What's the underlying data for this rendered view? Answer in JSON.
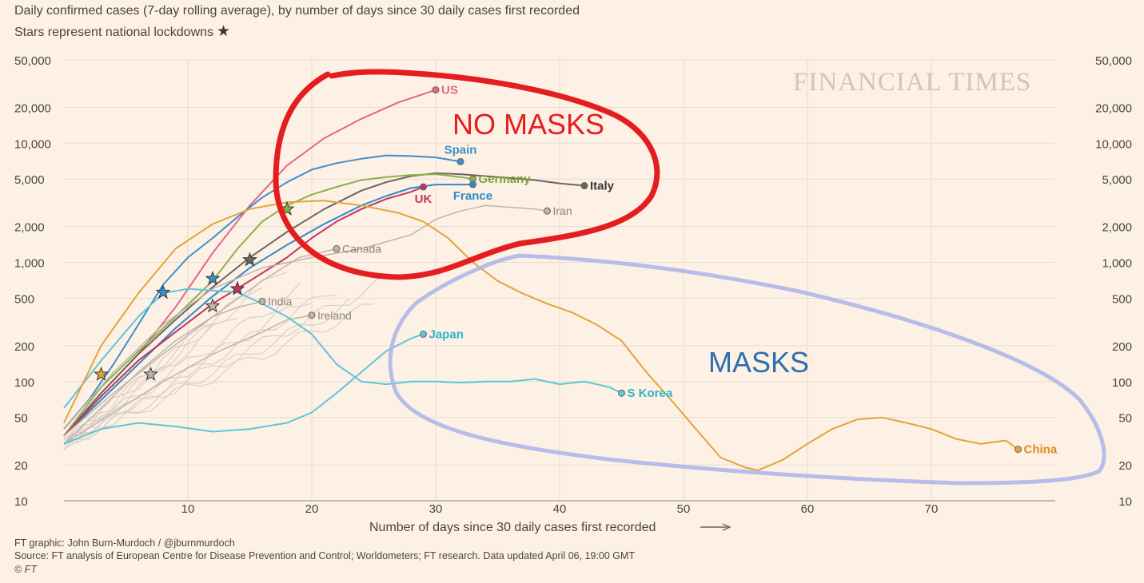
{
  "header": {
    "subtitle": "Daily confirmed cases (7-day rolling average), by number of days since 30 daily cases first recorded",
    "lockdown_note": "Stars represent national lockdowns"
  },
  "watermark": "FINANCIAL TIMES",
  "annotations": {
    "no_masks": "NO MASKS",
    "masks": "MASKS",
    "no_masks_color": "#e41e1e",
    "masks_color": "#aab4e8"
  },
  "footer": {
    "credit": "FT graphic: John Burn-Murdoch / @jburnmurdoch",
    "source": "Source: FT analysis of European Centre for Disease Prevention and Control; Worldometers; FT research. Data updated April 06, 19:00 GMT",
    "copyright": "© FT"
  },
  "chart_data": {
    "type": "line",
    "title": "",
    "xlabel": "Number of days since 30 daily cases first recorded",
    "ylabel": "",
    "y_scale": "log",
    "ylim": [
      10,
      50000
    ],
    "xlim": [
      0,
      80
    ],
    "yticks": [
      10,
      20,
      50,
      100,
      200,
      500,
      1000,
      2000,
      5000,
      10000,
      20000,
      50000
    ],
    "ytick_labels": [
      "10",
      "20",
      "50",
      "100",
      "200",
      "500",
      "1,000",
      "2,000",
      "5,000",
      "10,000",
      "20,000",
      "50,000"
    ],
    "xticks": [
      10,
      20,
      30,
      40,
      50,
      60,
      70
    ],
    "grid": true,
    "series": [
      {
        "name": "US",
        "color": "#e5648a",
        "label_color": "#e5648a",
        "width": 2,
        "x": [
          0,
          3,
          6,
          9,
          12,
          15,
          18,
          21,
          24,
          27,
          30
        ],
        "y": [
          35,
          80,
          170,
          420,
          1200,
          3000,
          6500,
          11000,
          16000,
          22000,
          28000
        ]
      },
      {
        "name": "Spain",
        "color": "#3f8fca",
        "label_color": "#3f8fca",
        "width": 2,
        "x": [
          0,
          2,
          4,
          6,
          8,
          10,
          12,
          14,
          16,
          18,
          20,
          22,
          24,
          26,
          28,
          30,
          32
        ],
        "y": [
          40,
          70,
          140,
          300,
          650,
          1100,
          1600,
          2400,
          3500,
          4700,
          6000,
          6800,
          7400,
          7900,
          7800,
          7600,
          7000
        ]
      },
      {
        "name": "Italy",
        "color": "#6b6460",
        "label_color": "#3b3634",
        "width": 2,
        "x": [
          0,
          3,
          6,
          9,
          12,
          15,
          18,
          21,
          24,
          26,
          28,
          30,
          32,
          34,
          36,
          38,
          40,
          42
        ],
        "y": [
          35,
          80,
          170,
          330,
          620,
          1100,
          1800,
          2800,
          4000,
          4700,
          5300,
          5600,
          5500,
          5300,
          5100,
          4900,
          4600,
          4400
        ]
      },
      {
        "name": "Germany",
        "color": "#8db04a",
        "label_color": "#7aa33a",
        "width": 2,
        "x": [
          0,
          3,
          6,
          9,
          12,
          14,
          16,
          18,
          20,
          22,
          24,
          26,
          28,
          30,
          32,
          33
        ],
        "y": [
          35,
          90,
          180,
          350,
          700,
          1300,
          2200,
          3000,
          3700,
          4300,
          4900,
          5200,
          5400,
          5500,
          5200,
          5000
        ]
      },
      {
        "name": "France",
        "color": "#2f8ac8",
        "label_color": "#2f8ac8",
        "width": 2,
        "x": [
          0,
          3,
          6,
          9,
          12,
          15,
          18,
          21,
          24,
          26,
          28,
          30,
          32,
          33
        ],
        "y": [
          35,
          70,
          140,
          280,
          520,
          900,
          1400,
          2100,
          3000,
          3600,
          4200,
          4500,
          4500,
          4500
        ]
      },
      {
        "name": "UK",
        "color": "#c1345e",
        "label_color": "#c1345e",
        "width": 2,
        "x": [
          0,
          3,
          6,
          9,
          12,
          15,
          18,
          20,
          22,
          24,
          26,
          28,
          29
        ],
        "y": [
          35,
          75,
          150,
          260,
          450,
          700,
          1100,
          1600,
          2200,
          2800,
          3400,
          3900,
          4300
        ]
      },
      {
        "name": "Iran",
        "color": "#bfb3ab",
        "label_color": "#8a817b",
        "width": 1.5,
        "x": [
          0,
          4,
          8,
          12,
          16,
          20,
          24,
          28,
          30,
          32,
          34,
          36,
          38,
          39
        ],
        "y": [
          40,
          120,
          300,
          600,
          900,
          1100,
          1300,
          1700,
          2300,
          2700,
          3000,
          2900,
          2800,
          2700
        ]
      },
      {
        "name": "Canada",
        "color": "#bfb3ab",
        "label_color": "#8a817b",
        "width": 1.5,
        "x": [
          0,
          4,
          8,
          12,
          16,
          19,
          22
        ],
        "y": [
          35,
          80,
          170,
          350,
          700,
          1100,
          1300
        ]
      },
      {
        "name": "India",
        "color": "#bfb3ab",
        "label_color": "#8a817b",
        "width": 1.5,
        "x": [
          0,
          3,
          6,
          9,
          12,
          14,
          16
        ],
        "y": [
          30,
          60,
          120,
          220,
          350,
          420,
          470
        ]
      },
      {
        "name": "Ireland",
        "color": "#bfb3ab",
        "label_color": "#8a817b",
        "width": 1.5,
        "x": [
          0,
          4,
          8,
          12,
          16,
          18,
          20
        ],
        "y": [
          30,
          55,
          100,
          170,
          260,
          330,
          360
        ]
      },
      {
        "name": "Japan",
        "color": "#5ec6d8",
        "label_color": "#2db4cc",
        "width": 2,
        "x": [
          0,
          3,
          6,
          9,
          12,
          15,
          18,
          20,
          22,
          24,
          26,
          28,
          29
        ],
        "y": [
          30,
          40,
          45,
          42,
          38,
          40,
          45,
          55,
          80,
          120,
          180,
          230,
          250
        ]
      },
      {
        "name": "S Korea",
        "color": "#5ec6d8",
        "label_color": "#2db4cc",
        "width": 2,
        "x": [
          0,
          3,
          6,
          8,
          10,
          12,
          14,
          16,
          18,
          20,
          22,
          24,
          26,
          28,
          30,
          32,
          34,
          36,
          38,
          40,
          42,
          44,
          45
        ],
        "y": [
          60,
          150,
          350,
          550,
          600,
          580,
          560,
          450,
          350,
          250,
          140,
          100,
          95,
          100,
          100,
          98,
          100,
          100,
          105,
          95,
          100,
          90,
          80
        ]
      },
      {
        "name": "China",
        "color": "#e3a33a",
        "label_color": "#e08a1e",
        "width": 2,
        "x": [
          0,
          3,
          6,
          9,
          12,
          15,
          18,
          21,
          24,
          27,
          29,
          31,
          33,
          35,
          37,
          39,
          41,
          43,
          45,
          47,
          49,
          51,
          53,
          55,
          56,
          58,
          60,
          62,
          64,
          66,
          68,
          70,
          72,
          74,
          76,
          77
        ],
        "y": [
          45,
          200,
          550,
          1300,
          2100,
          2800,
          3200,
          3300,
          3000,
          2600,
          2200,
          1600,
          1000,
          700,
          550,
          450,
          380,
          300,
          220,
          120,
          70,
          40,
          23,
          19,
          18,
          22,
          30,
          40,
          48,
          50,
          45,
          40,
          33,
          30,
          32,
          27
        ]
      }
    ],
    "lockdowns": [
      {
        "x": 3,
        "y": 115,
        "color": "#e3a33a"
      },
      {
        "x": 7,
        "y": 115,
        "color": "#bfb3ab"
      },
      {
        "x": 8,
        "y": 560,
        "color": "#3f8fca"
      },
      {
        "x": 12,
        "y": 730,
        "color": "#3f8fca"
      },
      {
        "x": 12,
        "y": 430,
        "color": "#bfb3ab"
      },
      {
        "x": 14,
        "y": 600,
        "color": "#c1345e"
      },
      {
        "x": 15,
        "y": 1050,
        "color": "#6b6460"
      },
      {
        "x": 18,
        "y": 2800,
        "color": "#8db04a"
      }
    ]
  }
}
